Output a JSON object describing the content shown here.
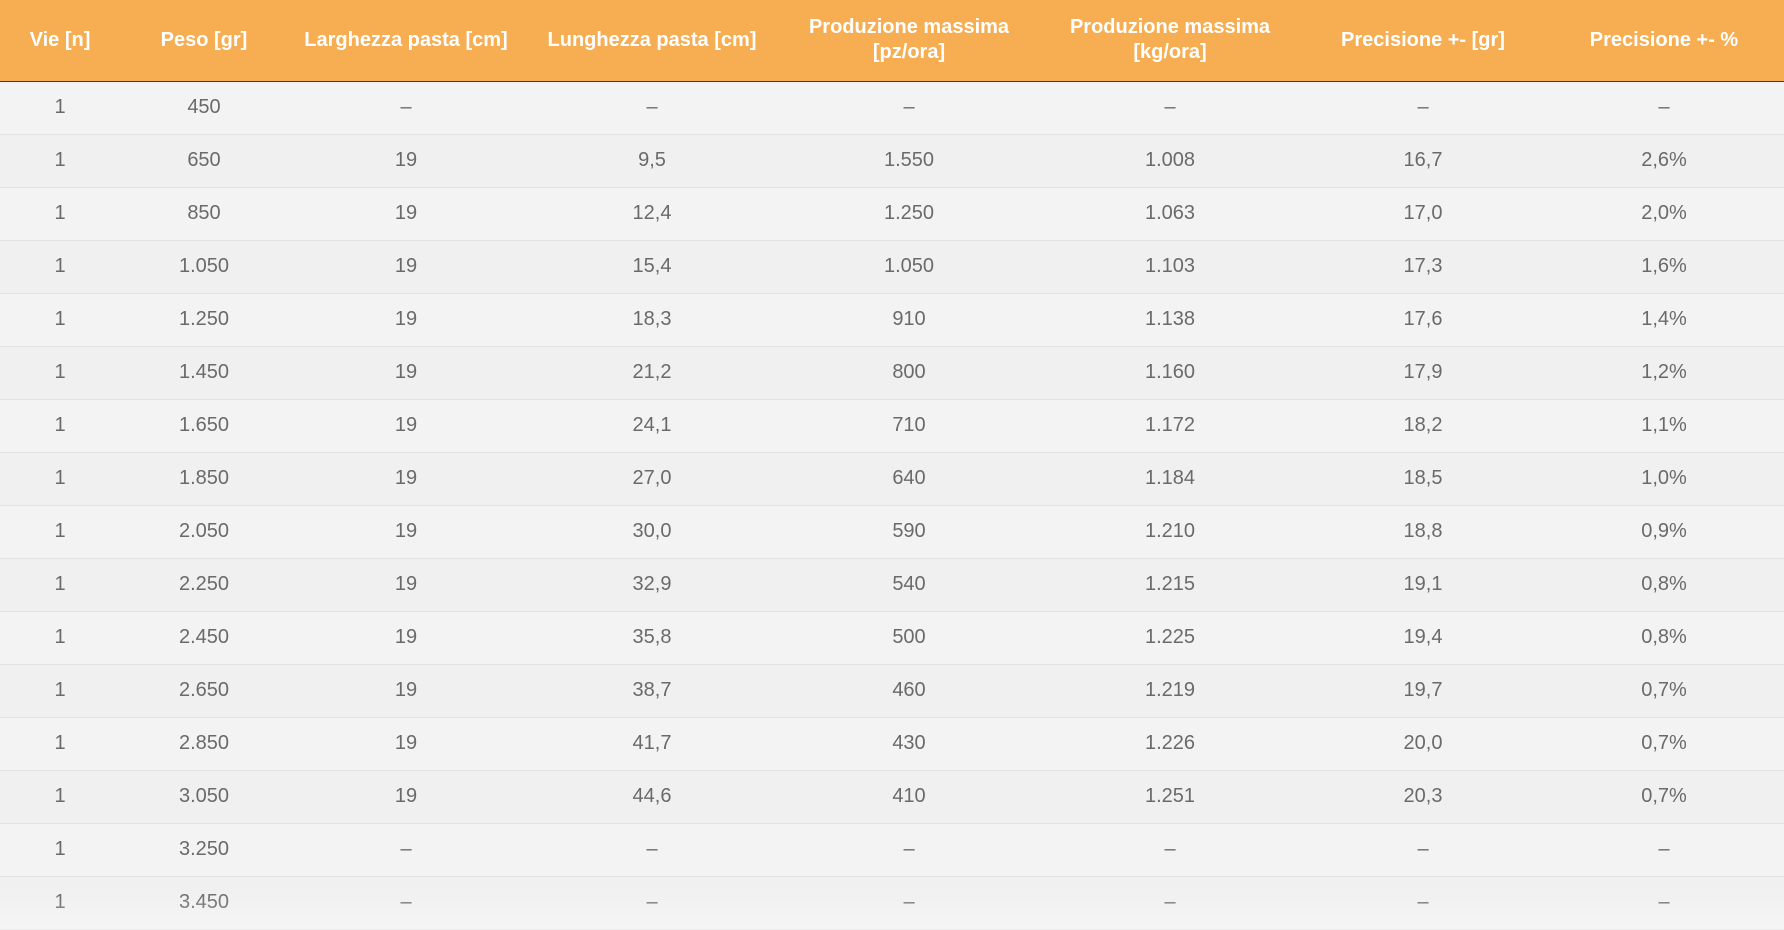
{
  "table": {
    "header_color": "#f7ae52",
    "columns": [
      "Vie [n]",
      "Peso [gr]",
      "Larghezza pasta [cm]",
      "Lunghezza pasta [cm]",
      "Produzione massima [pz/ora]",
      "Produzione massima [kg/ora]",
      "Precisione +- [gr]",
      "Precisione +- %"
    ],
    "rows": [
      [
        "1",
        "450",
        "–",
        "–",
        "–",
        "–",
        "–",
        "–"
      ],
      [
        "1",
        "650",
        "19",
        "9,5",
        "1.550",
        "1.008",
        "16,7",
        "2,6%"
      ],
      [
        "1",
        "850",
        "19",
        "12,4",
        "1.250",
        "1.063",
        "17,0",
        "2,0%"
      ],
      [
        "1",
        "1.050",
        "19",
        "15,4",
        "1.050",
        "1.103",
        "17,3",
        "1,6%"
      ],
      [
        "1",
        "1.250",
        "19",
        "18,3",
        "910",
        "1.138",
        "17,6",
        "1,4%"
      ],
      [
        "1",
        "1.450",
        "19",
        "21,2",
        "800",
        "1.160",
        "17,9",
        "1,2%"
      ],
      [
        "1",
        "1.650",
        "19",
        "24,1",
        "710",
        "1.172",
        "18,2",
        "1,1%"
      ],
      [
        "1",
        "1.850",
        "19",
        "27,0",
        "640",
        "1.184",
        "18,5",
        "1,0%"
      ],
      [
        "1",
        "2.050",
        "19",
        "30,0",
        "590",
        "1.210",
        "18,8",
        "0,9%"
      ],
      [
        "1",
        "2.250",
        "19",
        "32,9",
        "540",
        "1.215",
        "19,1",
        "0,8%"
      ],
      [
        "1",
        "2.450",
        "19",
        "35,8",
        "500",
        "1.225",
        "19,4",
        "0,8%"
      ],
      [
        "1",
        "2.650",
        "19",
        "38,7",
        "460",
        "1.219",
        "19,7",
        "0,7%"
      ],
      [
        "1",
        "2.850",
        "19",
        "41,7",
        "430",
        "1.226",
        "20,0",
        "0,7%"
      ],
      [
        "1",
        "3.050",
        "19",
        "44,6",
        "410",
        "1.251",
        "20,3",
        "0,7%"
      ],
      [
        "1",
        "3.250",
        "–",
        "–",
        "–",
        "–",
        "–",
        "–"
      ],
      [
        "1",
        "3.450",
        "–",
        "–",
        "–",
        "–",
        "–",
        "–"
      ]
    ]
  }
}
